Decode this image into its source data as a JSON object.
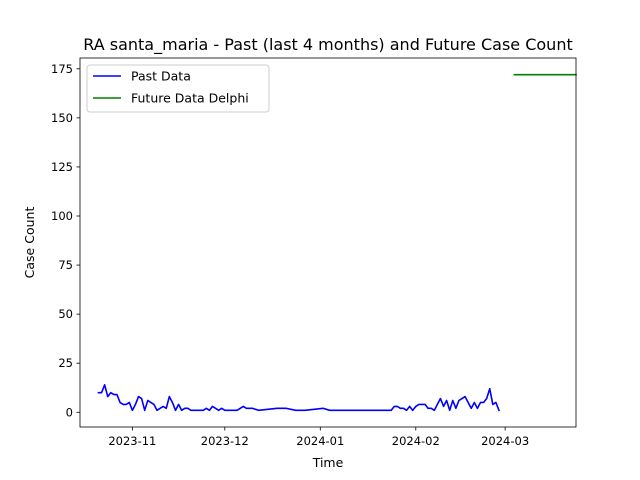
{
  "chart_data": {
    "type": "line",
    "title": "RA santa_maria - Past (last 4 months) and Future Case Count",
    "xlabel": "Time",
    "ylabel": "Case Count",
    "x_axis_type": "date",
    "xlim": [
      "2023-10-15",
      "2024-03-24"
    ],
    "ylim": [
      -7.5,
      180.5
    ],
    "xticks": [
      "2023-11",
      "2023-12",
      "2024-01",
      "2024-02",
      "2024-03"
    ],
    "yticks": [
      0,
      25,
      50,
      75,
      100,
      125,
      150,
      175
    ],
    "grid": false,
    "legend_position": "upper-left",
    "series": [
      {
        "name": "Past Data",
        "color": "#0000ff",
        "points": [
          [
            "2023-10-21",
            10
          ],
          [
            "2023-10-22",
            10
          ],
          [
            "2023-10-23",
            14
          ],
          [
            "2023-10-24",
            8
          ],
          [
            "2023-10-25",
            10
          ],
          [
            "2023-10-26",
            9
          ],
          [
            "2023-10-27",
            9
          ],
          [
            "2023-10-28",
            5
          ],
          [
            "2023-10-29",
            4
          ],
          [
            "2023-10-30",
            4
          ],
          [
            "2023-10-31",
            5
          ],
          [
            "2023-11-01",
            1
          ],
          [
            "2023-11-02",
            4
          ],
          [
            "2023-11-03",
            8
          ],
          [
            "2023-11-04",
            7
          ],
          [
            "2023-11-05",
            1
          ],
          [
            "2023-11-06",
            6
          ],
          [
            "2023-11-07",
            5
          ],
          [
            "2023-11-08",
            4
          ],
          [
            "2023-11-09",
            1
          ],
          [
            "2023-11-10",
            2
          ],
          [
            "2023-11-11",
            3
          ],
          [
            "2023-11-12",
            2
          ],
          [
            "2023-11-13",
            8
          ],
          [
            "2023-11-14",
            5
          ],
          [
            "2023-11-15",
            1
          ],
          [
            "2023-11-16",
            4
          ],
          [
            "2023-11-17",
            1
          ],
          [
            "2023-11-18",
            2
          ],
          [
            "2023-11-19",
            2
          ],
          [
            "2023-11-20",
            1
          ],
          [
            "2023-11-21",
            1
          ],
          [
            "2023-11-22",
            1
          ],
          [
            "2023-11-23",
            1
          ],
          [
            "2023-11-24",
            1
          ],
          [
            "2023-11-25",
            2
          ],
          [
            "2023-11-26",
            1
          ],
          [
            "2023-11-27",
            3
          ],
          [
            "2023-11-28",
            2
          ],
          [
            "2023-11-29",
            1
          ],
          [
            "2023-11-30",
            2
          ],
          [
            "2023-12-01",
            1
          ],
          [
            "2023-12-03",
            1
          ],
          [
            "2023-12-05",
            1
          ],
          [
            "2023-12-07",
            3
          ],
          [
            "2023-12-08",
            2
          ],
          [
            "2023-12-10",
            2
          ],
          [
            "2023-12-12",
            1
          ],
          [
            "2023-12-15",
            1.5
          ],
          [
            "2023-12-18",
            2
          ],
          [
            "2023-12-21",
            2
          ],
          [
            "2023-12-24",
            1
          ],
          [
            "2023-12-27",
            1
          ],
          [
            "2023-12-30",
            1.5
          ],
          [
            "2024-01-02",
            2
          ],
          [
            "2024-01-04",
            1
          ],
          [
            "2024-01-07",
            1
          ],
          [
            "2024-01-10",
            1
          ],
          [
            "2024-01-13",
            1
          ],
          [
            "2024-01-16",
            1
          ],
          [
            "2024-01-19",
            1
          ],
          [
            "2024-01-22",
            1
          ],
          [
            "2024-01-24",
            1
          ],
          [
            "2024-01-25",
            3
          ],
          [
            "2024-01-26",
            3
          ],
          [
            "2024-01-27",
            2
          ],
          [
            "2024-01-28",
            2
          ],
          [
            "2024-01-29",
            1
          ],
          [
            "2024-01-30",
            3
          ],
          [
            "2024-01-31",
            1
          ],
          [
            "2024-02-01",
            3
          ],
          [
            "2024-02-02",
            4
          ],
          [
            "2024-02-03",
            4
          ],
          [
            "2024-02-04",
            4
          ],
          [
            "2024-02-05",
            2
          ],
          [
            "2024-02-06",
            2
          ],
          [
            "2024-02-07",
            1
          ],
          [
            "2024-02-08",
            4
          ],
          [
            "2024-02-09",
            7
          ],
          [
            "2024-02-10",
            3
          ],
          [
            "2024-02-11",
            6
          ],
          [
            "2024-02-12",
            1
          ],
          [
            "2024-02-13",
            6
          ],
          [
            "2024-02-14",
            2
          ],
          [
            "2024-02-15",
            6
          ],
          [
            "2024-02-16",
            7
          ],
          [
            "2024-02-17",
            8
          ],
          [
            "2024-02-18",
            5
          ],
          [
            "2024-02-19",
            2
          ],
          [
            "2024-02-20",
            5
          ],
          [
            "2024-02-21",
            2
          ],
          [
            "2024-02-22",
            5
          ],
          [
            "2024-02-23",
            5
          ],
          [
            "2024-02-24",
            7
          ],
          [
            "2024-02-25",
            12
          ],
          [
            "2024-02-26",
            4
          ],
          [
            "2024-02-27",
            5
          ],
          [
            "2024-02-28",
            1
          ]
        ]
      },
      {
        "name": "Future Data Delphi",
        "color": "#008000",
        "points": [
          [
            "2024-03-04",
            172
          ],
          [
            "2024-03-24",
            172
          ]
        ]
      }
    ]
  }
}
